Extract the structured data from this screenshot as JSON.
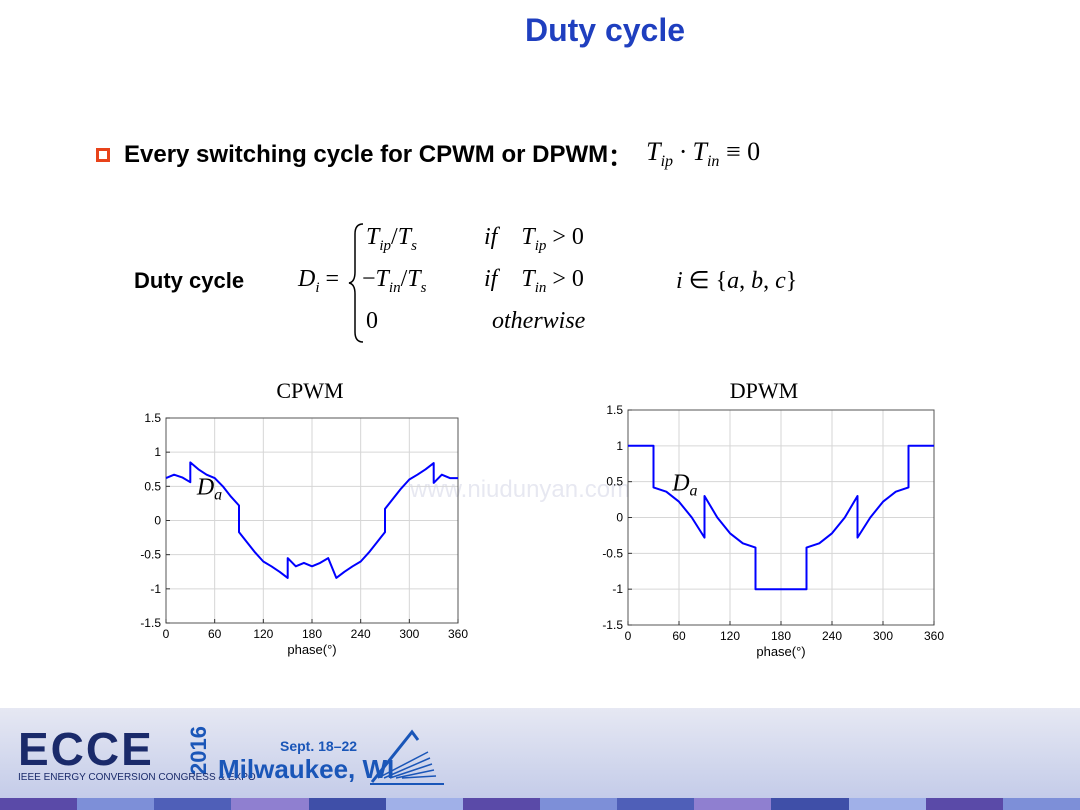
{
  "title": "Duty cycle",
  "bullet": {
    "text": "Every switching cycle for CPWM or DPWM",
    "colon": "："
  },
  "duty_label": "Duty cycle",
  "watermark": "www.niudunyan.com",
  "footer": {
    "logo": "ECCE",
    "year": "2016",
    "subtitle": "IEEE ENERGY CONVERSION CONGRESS & EXPO",
    "dates": "Sept. 18–22",
    "city": "Milwaukee, WI"
  },
  "colors": {
    "title": "#1f3fbf",
    "bullet": "#e8431a",
    "series": "#0000ff",
    "stripes": [
      "#5a4aa8",
      "#7d8fd8",
      "#4f5fb8",
      "#8f7fd0",
      "#3f4fa8",
      "#a0b0e8",
      "#5a4aa8",
      "#7d8fd8",
      "#4f5fb8",
      "#8f7fd0",
      "#3f4fa8",
      "#a0b0e8",
      "#5a4aa8",
      "#7d8fd8"
    ]
  },
  "chart_data": [
    {
      "type": "line",
      "title": "CPWM",
      "xlabel": "phase(°)",
      "ylabel": "",
      "xlim": [
        0,
        360
      ],
      "ylim": [
        -1.5,
        1.5
      ],
      "xticks": [
        0,
        60,
        120,
        180,
        240,
        300,
        360
      ],
      "yticks": [
        -1.5,
        -1,
        -0.5,
        0,
        0.5,
        1,
        1.5
      ],
      "grid": true,
      "annotation": "Da",
      "series": [
        {
          "name": "",
          "x": [
            0,
            10,
            20,
            30,
            30,
            40,
            50,
            60,
            70,
            80,
            90,
            90,
            100,
            110,
            120,
            130,
            140,
            150,
            150,
            160,
            170,
            180,
            190,
            200,
            210,
            210,
            220,
            230,
            240,
            250,
            260,
            270,
            270,
            280,
            290,
            300,
            310,
            320,
            330,
            330,
            340,
            350,
            360
          ],
          "y": [
            0.62,
            0.67,
            0.63,
            0.56,
            0.85,
            0.75,
            0.67,
            0.62,
            0.5,
            0.35,
            0.22,
            -0.17,
            -0.32,
            -0.47,
            -0.6,
            -0.67,
            -0.75,
            -0.84,
            -0.55,
            -0.67,
            -0.62,
            -0.67,
            -0.62,
            -0.55,
            -0.84,
            -0.84,
            -0.75,
            -0.67,
            -0.6,
            -0.47,
            -0.32,
            -0.17,
            0.17,
            0.32,
            0.47,
            0.6,
            0.67,
            0.75,
            0.84,
            0.55,
            0.67,
            0.62,
            0.62
          ]
        }
      ]
    },
    {
      "type": "line",
      "title": "DPWM",
      "xlabel": "phase(°)",
      "ylabel": "",
      "xlim": [
        0,
        360
      ],
      "ylim": [
        -1.5,
        1.5
      ],
      "xticks": [
        0,
        60,
        120,
        180,
        240,
        300,
        360
      ],
      "yticks": [
        -1.5,
        -1,
        -0.5,
        0,
        0.5,
        1,
        1.5
      ],
      "grid": true,
      "annotation": "Da",
      "series": [
        {
          "name": "",
          "x": [
            0,
            30,
            30,
            45,
            60,
            75,
            90,
            90,
            105,
            120,
            135,
            150,
            150,
            210,
            210,
            225,
            240,
            255,
            270,
            270,
            285,
            300,
            315,
            330,
            330,
            360
          ],
          "y": [
            1,
            1,
            0.42,
            0.36,
            0.22,
            0.0,
            -0.28,
            0.3,
            0.0,
            -0.22,
            -0.36,
            -0.42,
            -1,
            -1,
            -0.42,
            -0.36,
            -0.22,
            0.0,
            0.3,
            -0.28,
            0.0,
            0.22,
            0.36,
            0.42,
            1,
            1
          ]
        }
      ]
    }
  ]
}
